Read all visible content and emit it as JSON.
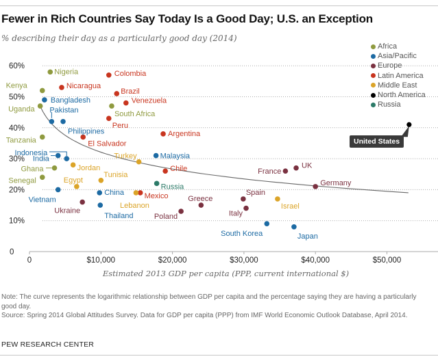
{
  "header": {
    "title": "Fewer in Rich Countries Say Today Is a Good Day; U.S. an Exception",
    "subtitle": "% describing their day as a particularly good day (2014)"
  },
  "chart_data": {
    "type": "scatter",
    "title": "Fewer in Rich Countries Say Today Is a Good Day; U.S. an Exception",
    "subtitle": "% describing their day as a particularly good day (2014)",
    "xlabel": "Estimated 2013 GDP per capita (PPP, current international $)",
    "ylabel": "",
    "xlim": [
      0,
      57000
    ],
    "ylim": [
      0,
      62
    ],
    "x_ticks": [
      0,
      10000,
      20000,
      30000,
      40000,
      50000
    ],
    "x_tick_labels": [
      "0",
      "$10,000",
      "$20,000",
      "$30,000",
      "$40,000",
      "$50,000"
    ],
    "y_ticks": [
      0,
      10,
      20,
      30,
      40,
      50,
      60
    ],
    "y_tick_labels": [
      "0",
      "10%",
      "20%",
      "30%",
      "40%",
      "50%",
      "60%"
    ],
    "grid": "horizontal dotted",
    "legend_position": "top-right",
    "regions": [
      {
        "name": "Africa",
        "color": "#8f9a3f"
      },
      {
        "name": "Asia/Pacific",
        "color": "#1c6aa3"
      },
      {
        "name": "Europe",
        "color": "#7a3140"
      },
      {
        "name": "Latin America",
        "color": "#c8351f"
      },
      {
        "name": "Middle East",
        "color": "#dba428"
      },
      {
        "name": "North America",
        "color": "#000000"
      },
      {
        "name": "Russia",
        "color": "#2c7a68"
      }
    ],
    "trend": {
      "type": "logarithmic",
      "a": 104.4,
      "b": -7.85,
      "x_from": 1500,
      "x_to": 53000,
      "description": "pct = a + b*ln(gdp)"
    },
    "points": [
      {
        "country": "Nigeria",
        "region": "Africa",
        "gdp": 2900,
        "pct": 58
      },
      {
        "country": "Kenya",
        "region": "Africa",
        "gdp": 1800,
        "pct": 52
      },
      {
        "country": "Uganda",
        "region": "Africa",
        "gdp": 1500,
        "pct": 47
      },
      {
        "country": "South Africa",
        "region": "Africa",
        "gdp": 11500,
        "pct": 47
      },
      {
        "country": "Tanzania",
        "region": "Africa",
        "gdp": 1800,
        "pct": 37
      },
      {
        "country": "Ghana",
        "region": "Africa",
        "gdp": 3500,
        "pct": 27
      },
      {
        "country": "Senegal",
        "region": "Africa",
        "gdp": 1800,
        "pct": 24
      },
      {
        "country": "Bangladesh",
        "region": "Asia/Pacific",
        "gdp": 2100,
        "pct": 49
      },
      {
        "country": "Pakistan",
        "region": "Asia/Pacific",
        "gdp": 3100,
        "pct": 42
      },
      {
        "country": "Philippines",
        "region": "Asia/Pacific",
        "gdp": 4700,
        "pct": 42
      },
      {
        "country": "Indonesia",
        "region": "Asia/Pacific",
        "gdp": 5200,
        "pct": 30
      },
      {
        "country": "India",
        "region": "Asia/Pacific",
        "gdp": 4000,
        "pct": 31
      },
      {
        "country": "Malaysia",
        "region": "Asia/Pacific",
        "gdp": 17700,
        "pct": 31
      },
      {
        "country": "Vietnam",
        "region": "Asia/Pacific",
        "gdp": 4000,
        "pct": 20
      },
      {
        "country": "China",
        "region": "Asia/Pacific",
        "gdp": 9800,
        "pct": 19
      },
      {
        "country": "Thailand",
        "region": "Asia/Pacific",
        "gdp": 9900,
        "pct": 15
      },
      {
        "country": "South Korea",
        "region": "Asia/Pacific",
        "gdp": 33200,
        "pct": 9
      },
      {
        "country": "Japan",
        "region": "Asia/Pacific",
        "gdp": 37000,
        "pct": 8
      },
      {
        "country": "Ukraine",
        "region": "Europe",
        "gdp": 7400,
        "pct": 16
      },
      {
        "country": "Poland",
        "region": "Europe",
        "gdp": 21200,
        "pct": 13
      },
      {
        "country": "Greece",
        "region": "Europe",
        "gdp": 24000,
        "pct": 15
      },
      {
        "country": "Spain",
        "region": "Europe",
        "gdp": 29900,
        "pct": 17
      },
      {
        "country": "Italy",
        "region": "Europe",
        "gdp": 30300,
        "pct": 14
      },
      {
        "country": "France",
        "region": "Europe",
        "gdp": 35800,
        "pct": 26
      },
      {
        "country": "UK",
        "region": "Europe",
        "gdp": 37300,
        "pct": 27
      },
      {
        "country": "Germany",
        "region": "Europe",
        "gdp": 40000,
        "pct": 21
      },
      {
        "country": "Nicaragua",
        "region": "Latin America",
        "gdp": 4500,
        "pct": 53
      },
      {
        "country": "Colombia",
        "region": "Latin America",
        "gdp": 11100,
        "pct": 57
      },
      {
        "country": "Brazil",
        "region": "Latin America",
        "gdp": 12200,
        "pct": 51
      },
      {
        "country": "Venezuela",
        "region": "Latin America",
        "gdp": 13500,
        "pct": 48
      },
      {
        "country": "Peru",
        "region": "Latin America",
        "gdp": 11100,
        "pct": 43
      },
      {
        "country": "El Salvador",
        "region": "Latin America",
        "gdp": 7500,
        "pct": 37
      },
      {
        "country": "Argentina",
        "region": "Latin America",
        "gdp": 18700,
        "pct": 38
      },
      {
        "country": "Chile",
        "region": "Latin America",
        "gdp": 19000,
        "pct": 26
      },
      {
        "country": "Mexico",
        "region": "Latin America",
        "gdp": 15500,
        "pct": 19
      },
      {
        "country": "Jordan",
        "region": "Middle East",
        "gdp": 6100,
        "pct": 28
      },
      {
        "country": "Turkey",
        "region": "Middle East",
        "gdp": 15300,
        "pct": 29
      },
      {
        "country": "Egypt",
        "region": "Middle East",
        "gdp": 6600,
        "pct": 21
      },
      {
        "country": "Tunisia",
        "region": "Middle East",
        "gdp": 10000,
        "pct": 23
      },
      {
        "country": "Lebanon",
        "region": "Middle East",
        "gdp": 14900,
        "pct": 19
      },
      {
        "country": "Israel",
        "region": "Middle East",
        "gdp": 34700,
        "pct": 17
      },
      {
        "country": "Russia",
        "region": "Russia",
        "gdp": 17800,
        "pct": 22
      },
      {
        "country": "United States",
        "region": "North America",
        "gdp": 53100,
        "pct": 41
      }
    ],
    "callout": "United States"
  },
  "footer": {
    "note": "Note: The curve represents the logarithmic relationship between GDP per capita and the percentage saying they are having a particularly good day.",
    "source": "Source: Spring 2014 Global Attitudes Survey. Data for GDP per capita (PPP) from IMF World Economic Outlook Database, April 2014.",
    "brand": "PEW RESEARCH CENTER"
  }
}
